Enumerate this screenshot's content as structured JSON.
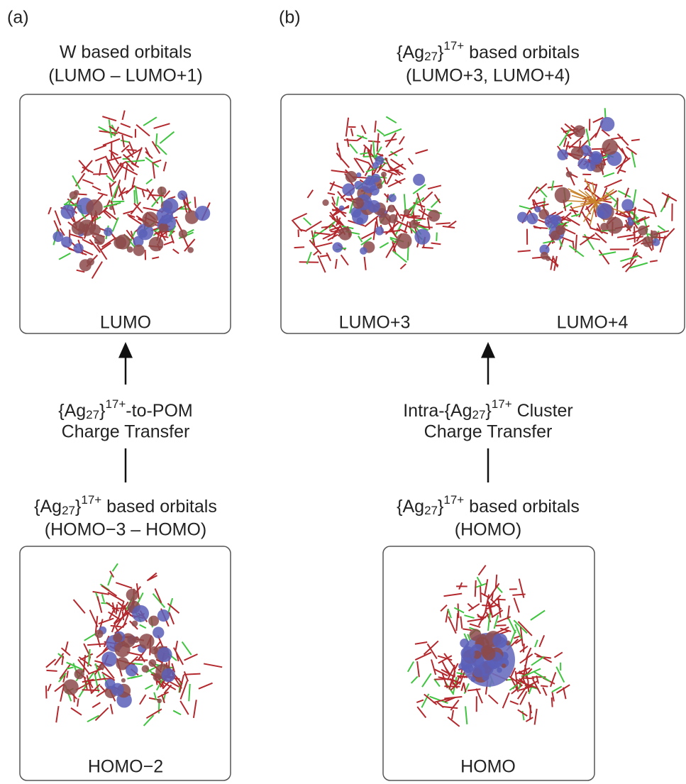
{
  "panels": [
    {
      "label": "(a)",
      "upper": {
        "title": [
          "W based orbitals",
          "(LUMO – LUMO+1)"
        ],
        "orbitals": [
          "LUMO"
        ]
      },
      "transfer": [
        [
          {
            "t": "{Ag"
          },
          {
            "sub": "27"
          },
          {
            "t": "}"
          },
          {
            "sup": "17+"
          },
          {
            "t": "-to-POM"
          }
        ],
        "Charge Transfer"
      ],
      "lower": {
        "title": [
          [
            {
              "t": "{Ag"
            },
            {
              "sub": "27"
            },
            {
              "t": "}"
            },
            {
              "sup": "17+"
            },
            {
              "t": " based orbitals"
            }
          ],
          "(HOMO−3 – HOMO)"
        ],
        "orbitals": [
          "HOMO−2"
        ]
      }
    },
    {
      "label": "(b)",
      "upper": {
        "title": [
          [
            {
              "t": "{Ag"
            },
            {
              "sub": "27"
            },
            {
              "t": "}"
            },
            {
              "sup": "17+"
            },
            {
              "t": " based orbitals"
            }
          ],
          "(LUMO+3, LUMO+4)"
        ],
        "orbitals": [
          "LUMO+3",
          "LUMO+4"
        ]
      },
      "transfer": [
        [
          {
            "t": "Intra-{Ag"
          },
          {
            "sub": "27"
          },
          {
            "t": "}"
          },
          {
            "sup": "17+"
          },
          {
            "t": " Cluster"
          }
        ],
        "Charge Transfer"
      ],
      "lower": {
        "title": [
          [
            {
              "t": "{Ag"
            },
            {
              "sub": "27"
            },
            {
              "t": "}"
            },
            {
              "sup": "17+"
            },
            {
              "t": " based orbitals"
            }
          ],
          "(HOMO)"
        ],
        "orbitals": [
          "HOMO"
        ]
      }
    }
  ]
}
